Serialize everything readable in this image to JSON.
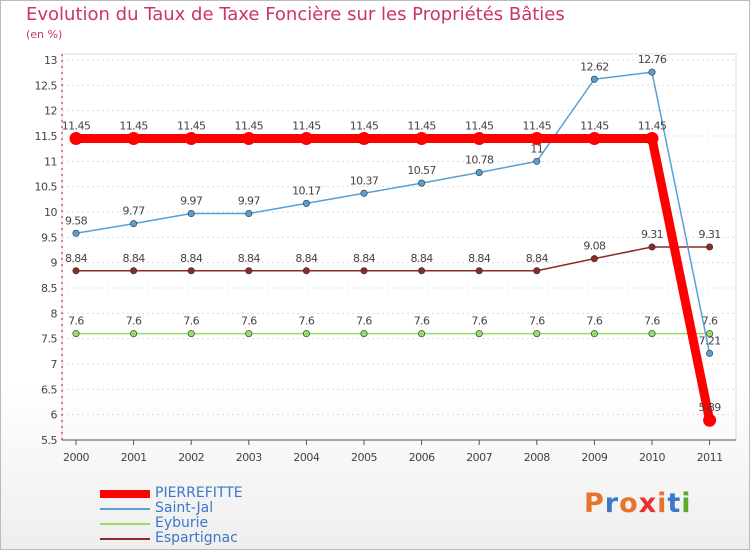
{
  "title": "Evolution du Taux de Taxe Foncière sur les Propriétés Bâties",
  "subtitle": "(en %)",
  "logo": {
    "text": "Proxiti",
    "letter_colors": [
      "#e8742a",
      "#3b78c8",
      "#e8742a",
      "#e83030",
      "#e8742a",
      "#3b78c8",
      "#5aaa2a"
    ]
  },
  "chart_data": {
    "type": "line",
    "title": "Evolution du Taux de Taxe Foncière sur les Propriétés Bâties",
    "ylabel": "(en %)",
    "xlabel": "",
    "ylim": [
      5.5,
      13
    ],
    "yticks": [
      "5.5",
      "6",
      "6.5",
      "7",
      "7.5",
      "8",
      "8.5",
      "9",
      "9.5",
      "10",
      "10.5",
      "11",
      "11.5",
      "12",
      "12.5",
      "13"
    ],
    "categories": [
      "2000",
      "2001",
      "2002",
      "2003",
      "2004",
      "2005",
      "2006",
      "2007",
      "2008",
      "2009",
      "2010",
      "2011"
    ],
    "grid": true,
    "legend": "bottom-left",
    "series": [
      {
        "name": "PIERREFITTE",
        "color": "#ff0000",
        "values": [
          11.45,
          11.45,
          11.45,
          11.45,
          11.45,
          11.45,
          11.45,
          11.45,
          11.45,
          11.45,
          11.45,
          5.89
        ],
        "labels": [
          "11.45",
          "11.45",
          "11.45",
          "11.45",
          "11.45",
          "11.45",
          "11.45",
          "11.45",
          "11.45",
          "11.45",
          "11.45",
          "5.89"
        ]
      },
      {
        "name": "Saint-Jal",
        "color": "#5a9fd4",
        "values": [
          9.58,
          9.77,
          9.97,
          9.97,
          10.17,
          10.37,
          10.57,
          10.78,
          11,
          12.62,
          12.76,
          7.21
        ],
        "labels": [
          "9.58",
          "9.77",
          "9.97",
          "9.97",
          "10.17",
          "10.37",
          "10.57",
          "10.78",
          "11",
          "12.62",
          "12.76",
          "7.21"
        ]
      },
      {
        "name": "Eyburie",
        "color": "#99dd66",
        "values": [
          7.6,
          7.6,
          7.6,
          7.6,
          7.6,
          7.6,
          7.6,
          7.6,
          7.6,
          7.6,
          7.6,
          7.6
        ],
        "labels": [
          "7.6",
          "7.6",
          "7.6",
          "7.6",
          "7.6",
          "7.6",
          "7.6",
          "7.6",
          "7.6",
          "7.6",
          "7.6",
          "7.6"
        ]
      },
      {
        "name": "Espartignac",
        "color": "#8b2a2a",
        "values": [
          8.84,
          8.84,
          8.84,
          8.84,
          8.84,
          8.84,
          8.84,
          8.84,
          8.84,
          9.08,
          9.31,
          9.31
        ],
        "labels": [
          "8.84",
          "8.84",
          "8.84",
          "8.84",
          "8.84",
          "8.84",
          "8.84",
          "8.84",
          "8.84",
          "9.08",
          "9.31",
          "9.31"
        ]
      }
    ]
  }
}
